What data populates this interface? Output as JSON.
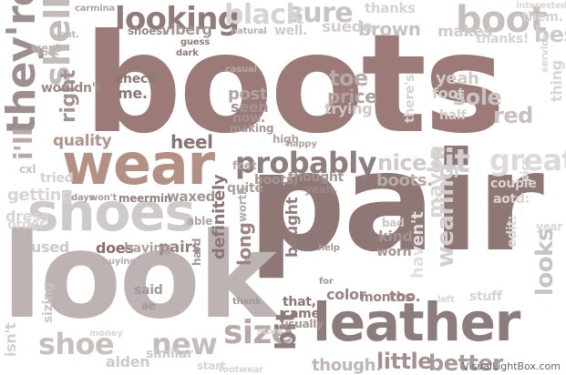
{
  "words": [
    {
      "text": "boots",
      "color": "#9b7a77"
    },
    {
      "text": "pair",
      "color": "#8e7775"
    },
    {
      "text": "look",
      "color": "#bcb3b2"
    },
    {
      "text": "wear",
      "color": "#b38f84"
    },
    {
      "text": "shoes",
      "color": "#cdcac9"
    },
    {
      "text": "leather",
      "color": "#8c7c7b"
    },
    {
      "text": "looking",
      "color": "#8f7b79"
    },
    {
      "text": "probably",
      "color": "#8e7e7d"
    },
    {
      "text": "they're",
      "color": "#9e8f8e"
    },
    {
      "text": "shell",
      "color": "#c2bbba"
    },
    {
      "text": "boot",
      "color": "#c6bfbe"
    },
    {
      "text": "sure",
      "color": "#c9c4c3"
    },
    {
      "text": "black",
      "color": "#d6d4d3"
    },
    {
      "text": "fit",
      "color": "#d1cdcc"
    },
    {
      "text": "great",
      "color": "#dddbda"
    },
    {
      "text": "size",
      "color": "#b7a9a7"
    },
    {
      "text": "new",
      "color": "#c4bcbb"
    },
    {
      "text": "shoe",
      "color": "#c7c0bf"
    },
    {
      "text": "bit",
      "color": "#8e7d7c"
    },
    {
      "text": "little",
      "color": "#a4918f"
    },
    {
      "text": "better",
      "color": "#a89a99"
    },
    {
      "text": "looks",
      "color": "#c9c3c2"
    },
    {
      "text": "heel",
      "color": "#877574"
    },
    {
      "text": "right",
      "color": "#a49492"
    },
    {
      "text": "quality",
      "color": "#b0928b"
    },
    {
      "text": "sizing",
      "color": "#cbc5c4"
    },
    {
      "text": "wouldn't",
      "color": "#9c8886"
    },
    {
      "text": "check",
      "color": "#8a7877"
    },
    {
      "text": "me.",
      "color": "#8a7877"
    },
    {
      "text": "definitely",
      "color": "#8a7675"
    },
    {
      "text": "long",
      "color": "#9c8280"
    },
    {
      "text": "bought",
      "color": "#927e7c"
    },
    {
      "text": "does",
      "color": "#8b6b66"
    },
    {
      "text": "pairs",
      "color": "#9a8381"
    },
    {
      "text": "having",
      "color": "#b09f9d"
    },
    {
      "text": "brown",
      "color": "#c8c2c1"
    },
    {
      "text": "suede",
      "color": "#d2cecd"
    },
    {
      "text": "makes",
      "color": "#d0cbca"
    },
    {
      "text": "toe",
      "color": "#b6aba9"
    },
    {
      "text": "price",
      "color": "#b0a3a1"
    },
    {
      "text": "trying",
      "color": "#cdc8c7"
    },
    {
      "text": "sole",
      "color": "#c9c3c2"
    },
    {
      "text": "red",
      "color": "#c8c1c0"
    },
    {
      "text": "nice",
      "color": "#cfcac9"
    },
    {
      "text": "boots.",
      "color": "#b8abaa"
    },
    {
      "text": "thought",
      "color": "#a49492"
    },
    {
      "text": "boots,",
      "color": "#a49492"
    },
    {
      "text": "kind",
      "color": "#a39493"
    },
    {
      "text": "worn",
      "color": "#a39493"
    },
    {
      "text": "color",
      "color": "#9a8382"
    },
    {
      "text": "months",
      "color": "#9a8382"
    },
    {
      "text": "too.",
      "color": "#9a8382"
    },
    {
      "text": "though.",
      "color": "#bfb6b5"
    },
    {
      "text": "wearing",
      "color": "#d3cfce"
    },
    {
      "text": "maybe",
      "color": "#d8d6d5"
    },
    {
      "text": "haven't",
      "color": "#e0dfde"
    },
    {
      "text": "alden",
      "color": "#d0cbca"
    },
    {
      "text": "similar",
      "color": "#cfcac9"
    },
    {
      "text": "said",
      "color": "#a59796"
    },
    {
      "text": "ae",
      "color": "#a59796"
    },
    {
      "text": "feet",
      "color": "#b2a6a4"
    },
    {
      "text": "quite",
      "color": "#a99c9b"
    },
    {
      "text": "waxed",
      "color": "#a39493"
    },
    {
      "text": "meermin",
      "color": "#948281"
    },
    {
      "text": "post",
      "color": "#b0a3a1"
    },
    {
      "text": "seen",
      "color": "#a39493"
    },
    {
      "text": "now.",
      "color": "#a39493"
    },
    {
      "text": "viberg",
      "color": "#a59796"
    },
    {
      "text": "shoes.",
      "color": "#9c8a88"
    },
    {
      "text": "thanks",
      "color": "#d6d3d2"
    },
    {
      "text": "thanks!",
      "color": "#d6d3d2"
    },
    {
      "text": "them.",
      "color": "#d6d3d2"
    },
    {
      "text": "best",
      "color": "#cfcac9"
    },
    {
      "text": "dress",
      "color": "#d9d6d5"
    },
    {
      "text": "getting",
      "color": "#d7d4d3"
    },
    {
      "text": "tried",
      "color": "#d5d1d0"
    },
    {
      "text": "used",
      "color": "#cfcac9"
    },
    {
      "text": "isn't",
      "color": "#d3cfce"
    },
    {
      "text": "order",
      "color": "#d9d6d5"
    },
    {
      "text": "i'll",
      "color": "#b6aba9"
    },
    {
      "text": "went",
      "color": "#bdb4b3"
    },
    {
      "text": "yeah",
      "color": "#d0cbca"
    },
    {
      "text": "foot",
      "color": "#d3cfce"
    },
    {
      "text": "half",
      "color": "#d3cfce"
    },
    {
      "text": "couple",
      "color": "#d9d6d5"
    },
    {
      "text": "aotd:",
      "color": "#d9d6d5"
    },
    {
      "text": "stuff",
      "color": "#d6d3d2"
    },
    {
      "text": "well.",
      "color": "#cfcac9"
    },
    {
      "text": "there's",
      "color": "#d6d3d2"
    },
    {
      "text": "thing",
      "color": "#d9d6d5"
    },
    {
      "text": "worth",
      "color": "#b6aba9"
    },
    {
      "text": "able",
      "color": "#b0a3a1"
    },
    {
      "text": "hard",
      "color": "#a59796"
    },
    {
      "text": "buying",
      "color": "#b6aba9"
    },
    {
      "text": "came",
      "color": "#8b7877"
    },
    {
      "text": "that,",
      "color": "#8b7877"
    },
    {
      "text": "usually",
      "color": "#a49492"
    },
    {
      "text": "thank",
      "color": "#a59796"
    },
    {
      "text": "help",
      "color": "#a59796"
    },
    {
      "text": "for",
      "color": "#a59796"
    },
    {
      "text": "bad",
      "color": "#cbc5c4"
    },
    {
      "text": "edit:",
      "color": "#d9d6d5"
    },
    {
      "text": "pics",
      "color": "#d9d6d5"
    },
    {
      "text": "cxl",
      "color": "#c8c1c0"
    },
    {
      "text": "days",
      "color": "#a59796"
    },
    {
      "text": "won't",
      "color": "#a59796"
    },
    {
      "text": "casual",
      "color": "#b6aba9"
    },
    {
      "text": "high",
      "color": "#b0a3a1"
    },
    {
      "text": "happy",
      "color": "#b0a3a1"
    },
    {
      "text": "guess",
      "color": "#8e7b79"
    },
    {
      "text": "dark",
      "color": "#8e7b79"
    },
    {
      "text": "natural",
      "color": "#b6aba9"
    },
    {
      "text": "carmina",
      "color": "#b0a3a1"
    },
    {
      "text": "yeah,",
      "color": "#9c8a88"
    },
    {
      "text": "year",
      "color": "#d9d6d5"
    },
    {
      "text": "service",
      "color": "#d9d6d5"
    },
    {
      "text": "interested",
      "color": "#d9d6d5"
    },
    {
      "text": "making",
      "color": "#a59796"
    },
    {
      "text": "sock",
      "color": "#bfb6b5"
    },
    {
      "text": "out.",
      "color": "#bfb6b5"
    },
    {
      "text": "store",
      "color": "#d9d6d5"
    },
    {
      "text": "left",
      "color": "#d9d6d5"
    },
    {
      "text": "money",
      "color": "#d9d6d5"
    },
    {
      "text": "start",
      "color": "#d9d6d5"
    },
    {
      "text": "footwear",
      "color": "#d9d6d5"
    }
  ],
  "watermark": "VisualLightBox.com"
}
